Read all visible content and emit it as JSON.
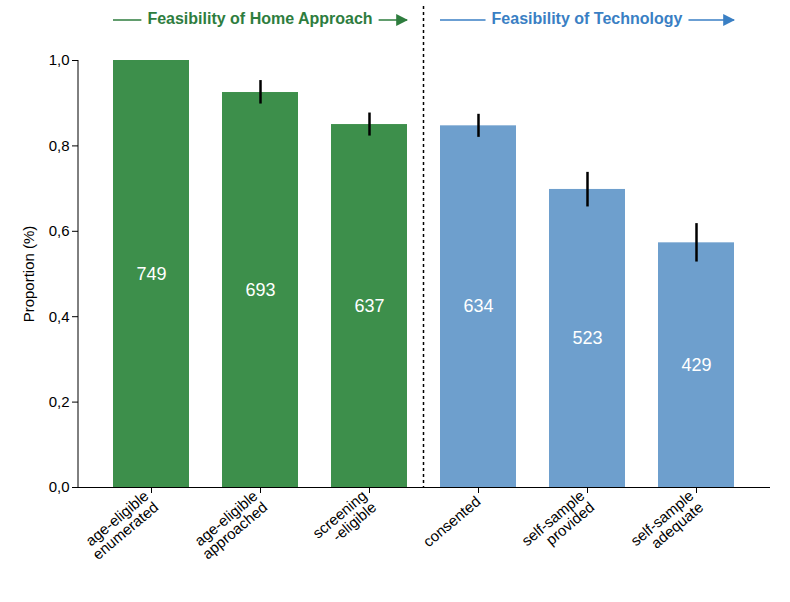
{
  "chart_data": {
    "type": "bar",
    "y_label": "Proportion (%)",
    "categories": [
      "age-eligible enumerated",
      "age-eligible approached",
      "screening -eligible",
      "consented",
      "self-sample provided",
      "self-sample adequate"
    ],
    "values": [
      1.0,
      0.925,
      0.85,
      0.847,
      0.698,
      0.573
    ],
    "error_low": [
      null,
      0.898,
      0.823,
      0.82,
      0.657,
      0.528
    ],
    "error_high": [
      null,
      0.953,
      0.877,
      0.874,
      0.738,
      0.618
    ],
    "counts": [
      749,
      693,
      637,
      634,
      523,
      429
    ],
    "colors": [
      "#3d8f4b",
      "#3d8f4b",
      "#3d8f4b",
      "#6e9fcd",
      "#6e9fcd",
      "#6e9fcd"
    ],
    "groups": [
      {
        "name": "Feasibility of Home Approach",
        "start": "age-eligible enumerated",
        "end": "screening -eligible",
        "color": "#2e7d3e"
      },
      {
        "name": "Feasibility of Technology",
        "start": "consented",
        "end": "self-sample adequate",
        "color": "#3a7fc4"
      }
    ],
    "ylim": [
      0,
      1
    ],
    "yticks": [
      {
        "value": 0,
        "label": "0,0"
      },
      {
        "value": 0.2,
        "label": "0,2"
      },
      {
        "value": 0.4,
        "label": "0,4"
      },
      {
        "value": 0.6,
        "label": "0,6"
      },
      {
        "value": 0.8,
        "label": "0,8"
      },
      {
        "value": 1,
        "label": "1,0"
      }
    ],
    "grid": false
  }
}
